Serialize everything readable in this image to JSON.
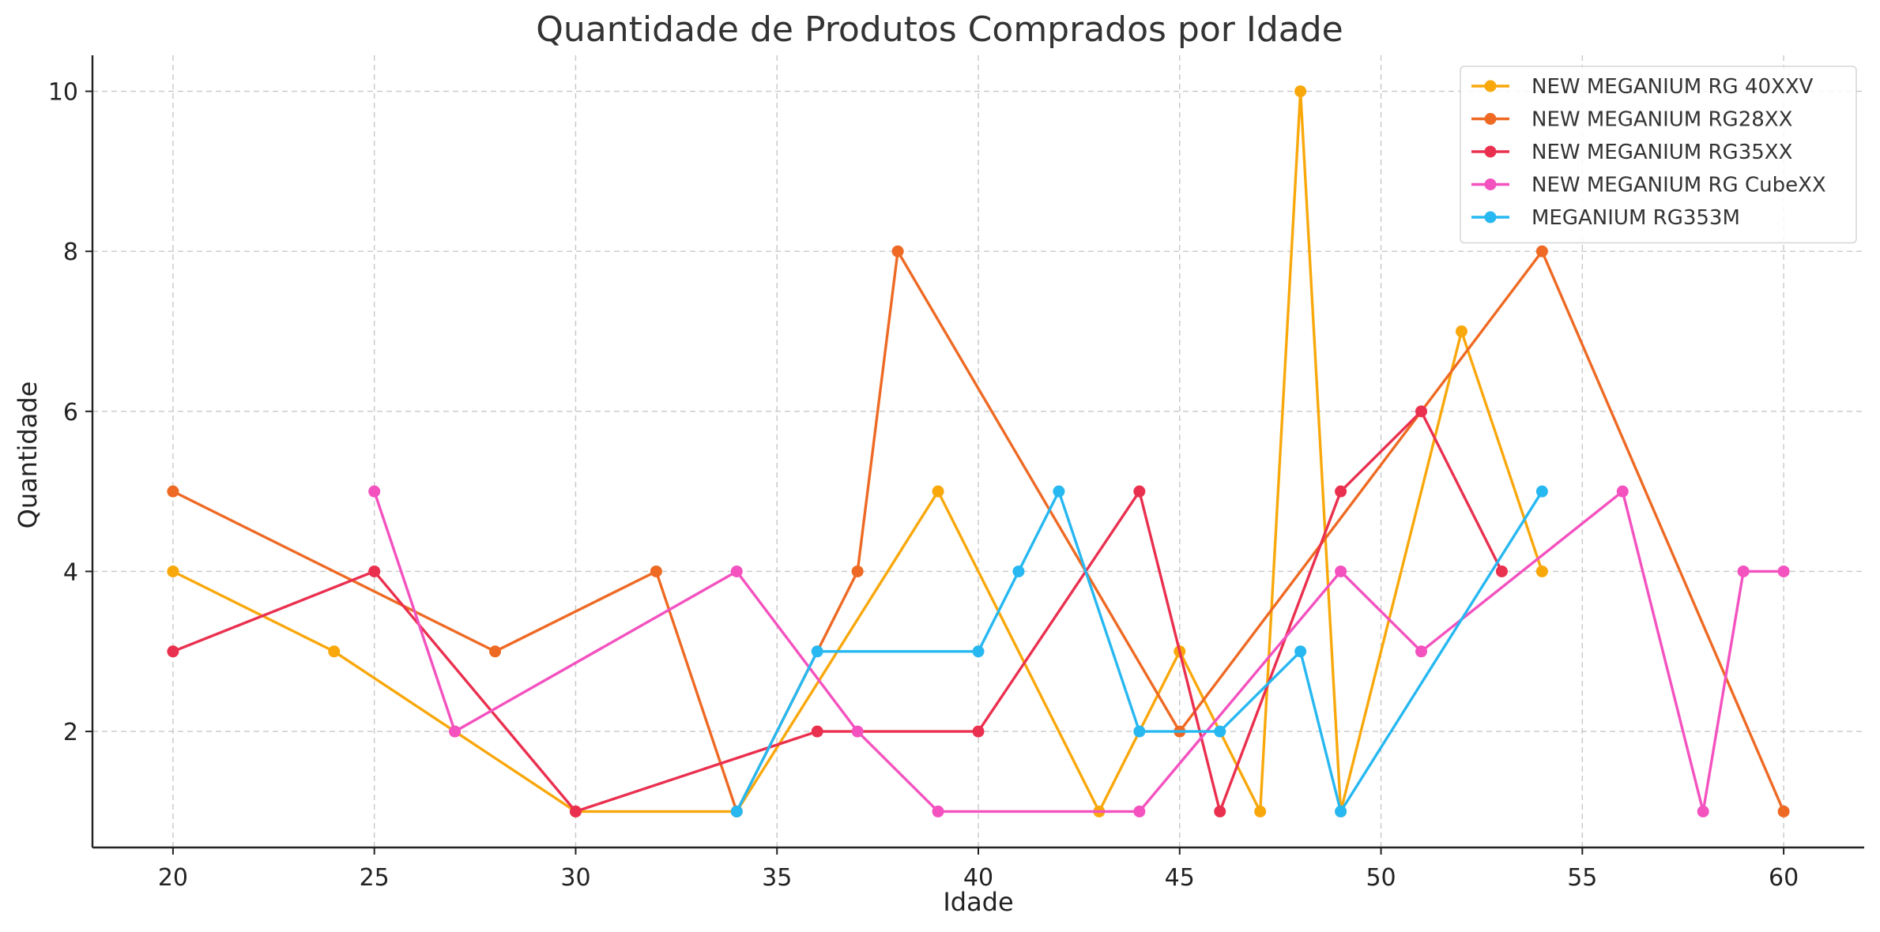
{
  "chart_data": {
    "type": "line",
    "title": "Quantidade de Produtos Comprados por Idade",
    "xlabel": "Idade",
    "ylabel": "Quantidade",
    "xlim": [
      18,
      62
    ],
    "ylim": [
      0.55,
      10.45
    ],
    "xticks": [
      20,
      25,
      30,
      35,
      40,
      45,
      50,
      55,
      60
    ],
    "yticks": [
      2,
      4,
      6,
      8,
      10
    ],
    "grid": true,
    "legend_position": "top-right",
    "series": [
      {
        "name": "NEW MEGANIUM RG 40XXV",
        "color": "#F9A80C",
        "points": [
          [
            20,
            4
          ],
          [
            24,
            3
          ],
          [
            27,
            2
          ],
          [
            30,
            1
          ],
          [
            34,
            1
          ],
          [
            39,
            5
          ],
          [
            43,
            1
          ],
          [
            45,
            3
          ],
          [
            47,
            1
          ],
          [
            48,
            10
          ],
          [
            49,
            1
          ],
          [
            52,
            7
          ],
          [
            54,
            4
          ]
        ]
      },
      {
        "name": "NEW MEGANIUM RG28XX",
        "color": "#EE6A24",
        "points": [
          [
            20,
            5
          ],
          [
            28,
            3
          ],
          [
            32,
            4
          ],
          [
            34,
            1
          ],
          [
            37,
            4
          ],
          [
            38,
            8
          ],
          [
            45,
            2
          ],
          [
            54,
            8
          ],
          [
            60,
            1
          ]
        ]
      },
      {
        "name": "NEW MEGANIUM RG35XX",
        "color": "#EA304F",
        "points": [
          [
            20,
            3
          ],
          [
            25,
            4
          ],
          [
            30,
            1
          ],
          [
            36,
            2
          ],
          [
            40,
            2
          ],
          [
            44,
            5
          ],
          [
            46,
            1
          ],
          [
            49,
            5
          ],
          [
            51,
            6
          ],
          [
            53,
            4
          ]
        ]
      },
      {
        "name": "NEW MEGANIUM RG CubeXX",
        "color": "#F352BF",
        "points": [
          [
            25,
            5
          ],
          [
            27,
            2
          ],
          [
            34,
            4
          ],
          [
            37,
            2
          ],
          [
            39,
            1
          ],
          [
            44,
            1
          ],
          [
            49,
            4
          ],
          [
            51,
            3
          ],
          [
            56,
            5
          ],
          [
            58,
            1
          ],
          [
            59,
            4
          ],
          [
            60,
            4
          ]
        ]
      },
      {
        "name": "MEGANIUM RG353M",
        "color": "#27B8F1",
        "points": [
          [
            34,
            1
          ],
          [
            36,
            3
          ],
          [
            40,
            3
          ],
          [
            41,
            4
          ],
          [
            42,
            5
          ],
          [
            44,
            2
          ],
          [
            46,
            2
          ],
          [
            48,
            3
          ],
          [
            49,
            1
          ],
          [
            54,
            5
          ]
        ]
      }
    ]
  }
}
